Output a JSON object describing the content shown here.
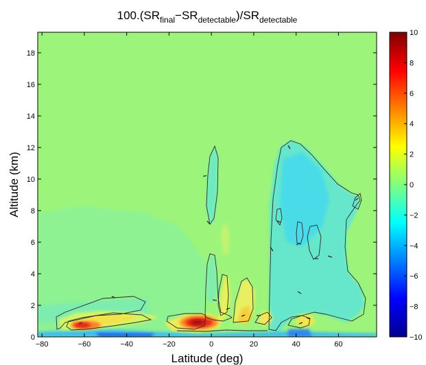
{
  "chart_data": {
    "type": "heatmap",
    "title": {
      "prefix": "100.(SR",
      "sub1": "final",
      "mid1": "−SR",
      "sub2": "detectable",
      "mid2": ")/SR",
      "sub3": "detectable"
    },
    "xlabel": "Latitude (deg)",
    "ylabel": "Altitude (km)",
    "xlim": [
      -82,
      78
    ],
    "ylim": [
      0,
      19.3
    ],
    "x_ticks": [
      -80,
      -60,
      -40,
      -20,
      0,
      20,
      40,
      60
    ],
    "y_ticks": [
      0,
      2,
      4,
      6,
      8,
      10,
      12,
      14,
      16,
      18
    ],
    "colorbar": {
      "colormap": "jet",
      "range": [
        -10,
        10
      ],
      "ticks": [
        -10,
        -8,
        -6,
        -4,
        -2,
        0,
        2,
        4,
        6,
        8,
        10
      ]
    },
    "background_value": 0,
    "features": [
      {
        "kind": "positive",
        "lat": -57,
        "alt": 0.75,
        "peak": 7.5
      },
      {
        "kind": "positive",
        "lat": -45,
        "alt": 0.95,
        "peak": 3.5
      },
      {
        "kind": "positive",
        "lat": -4,
        "alt": 0.8,
        "peak": 7.5
      },
      {
        "kind": "positive",
        "lat": 8,
        "alt": 2.3,
        "peak": 3.5
      },
      {
        "kind": "positive",
        "lat": 18,
        "alt": 1.0,
        "peak": 3.5
      },
      {
        "kind": "positive",
        "lat": 42,
        "alt": 0.5,
        "peak": 3.0
      },
      {
        "kind": "negative",
        "lat": 0,
        "alt": 9.8,
        "peak": -1.5
      },
      {
        "kind": "negative",
        "lat": 42,
        "alt": 8.0,
        "peak": -2.5
      },
      {
        "kind": "negative",
        "lat": -40,
        "alt": 0.05,
        "peak": -5.0
      }
    ]
  }
}
